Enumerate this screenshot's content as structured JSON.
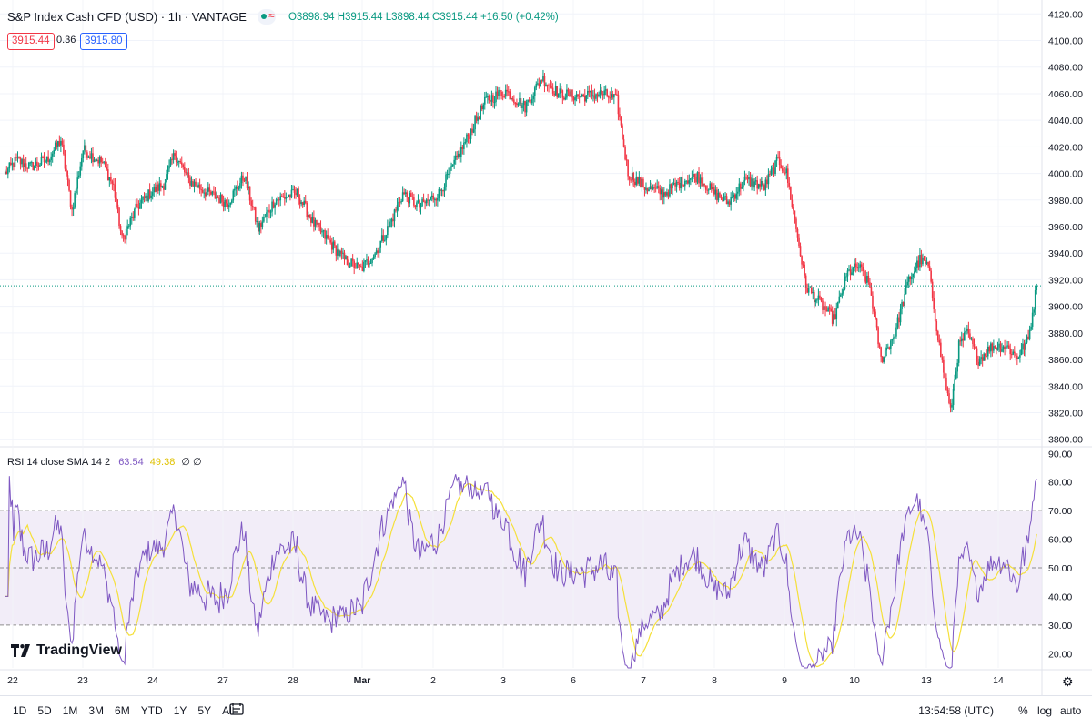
{
  "header": {
    "symbol": "S&P Index Cash CFD (USD) · 1h · VANTAGE",
    "open": "O3898.94",
    "high": "H3915.44",
    "low": "L3898.44",
    "close": "C3915.44",
    "change": "+16.50 (+0.42%)",
    "bid": "3915.44",
    "spread": "0.36",
    "ask": "3915.80",
    "wave_glyph": "≈"
  },
  "rsi_legend": {
    "label": "RSI 14 close SMA 14 2",
    "rsi_value": "63.54",
    "sma_value": "49.38",
    "extra": "∅ ∅"
  },
  "logo": {
    "text": "TradingView"
  },
  "bottom": {
    "ranges": [
      "1D",
      "5D",
      "1M",
      "3M",
      "6M",
      "YTD",
      "1Y",
      "5Y",
      "All"
    ],
    "time": "13:54:58 (UTC)",
    "percent": "%",
    "log": "log",
    "auto": "auto"
  },
  "colors": {
    "up": "#089981",
    "down": "#f23645",
    "rsi": "#7e57c2",
    "sma": "#f5e03a",
    "band": "#ede7f6"
  },
  "chart_data": [
    {
      "type": "candlestick",
      "title": "S&P Index Cash CFD (USD) · 1h · VANTAGE",
      "y_ticks": [
        3800,
        3820,
        3840,
        3860,
        3880,
        3900,
        3920,
        3940,
        3960,
        3980,
        4000,
        4020,
        4040,
        4060,
        4080,
        4100,
        4120
      ],
      "ylim": [
        3795,
        4125
      ],
      "x_ticks": [
        "22",
        "23",
        "24",
        "27",
        "28",
        "Mar",
        "2",
        "3",
        "6",
        "7",
        "8",
        "9",
        "10",
        "13",
        "14"
      ],
      "last_price": 3915.44,
      "close_waypoints": [
        [
          0,
          4000
        ],
        [
          8,
          4010
        ],
        [
          18,
          4005
        ],
        [
          30,
          4010
        ],
        [
          40,
          4025
        ],
        [
          48,
          3972
        ],
        [
          56,
          4018
        ],
        [
          70,
          4008
        ],
        [
          78,
          3990
        ],
        [
          84,
          3950
        ],
        [
          95,
          3975
        ],
        [
          104,
          3985
        ],
        [
          114,
          3992
        ],
        [
          122,
          4015
        ],
        [
          132,
          3995
        ],
        [
          146,
          3985
        ],
        [
          160,
          3978
        ],
        [
          172,
          3998
        ],
        [
          182,
          3958
        ],
        [
          194,
          3980
        ],
        [
          210,
          3985
        ],
        [
          222,
          3962
        ],
        [
          232,
          3950
        ],
        [
          244,
          3935
        ],
        [
          256,
          3928
        ],
        [
          266,
          3940
        ],
        [
          276,
          3960
        ],
        [
          286,
          3985
        ],
        [
          298,
          3975
        ],
        [
          312,
          3985
        ],
        [
          322,
          4005
        ],
        [
          334,
          4030
        ],
        [
          346,
          4055
        ],
        [
          360,
          4062
        ],
        [
          374,
          4050
        ],
        [
          386,
          4072
        ],
        [
          398,
          4060
        ],
        [
          414,
          4058
        ],
        [
          430,
          4060
        ],
        [
          440,
          4055
        ],
        [
          448,
          4000
        ],
        [
          460,
          3990
        ],
        [
          474,
          3985
        ],
        [
          488,
          3995
        ],
        [
          498,
          3998
        ],
        [
          510,
          3985
        ],
        [
          520,
          3978
        ],
        [
          532,
          3995
        ],
        [
          546,
          3990
        ],
        [
          556,
          4010
        ],
        [
          562,
          4000
        ],
        [
          568,
          3965
        ],
        [
          576,
          3915
        ],
        [
          588,
          3900
        ],
        [
          596,
          3890
        ],
        [
          606,
          3925
        ],
        [
          614,
          3930
        ],
        [
          622,
          3915
        ],
        [
          630,
          3860
        ],
        [
          640,
          3880
        ],
        [
          650,
          3920
        ],
        [
          658,
          3935
        ],
        [
          664,
          3930
        ],
        [
          672,
          3870
        ],
        [
          680,
          3820
        ],
        [
          686,
          3870
        ],
        [
          692,
          3880
        ],
        [
          700,
          3860
        ],
        [
          710,
          3870
        ],
        [
          720,
          3870
        ],
        [
          728,
          3862
        ],
        [
          736,
          3875
        ],
        [
          742,
          3915
        ]
      ]
    },
    {
      "type": "line",
      "title": "RSI 14 close SMA 14 2",
      "series": [
        {
          "name": "RSI",
          "last": 63.54
        },
        {
          "name": "SMA",
          "last": 49.38
        }
      ],
      "y_ticks": [
        20,
        30,
        40,
        50,
        60,
        70,
        80,
        90
      ],
      "ylim": [
        15,
        92
      ],
      "bands": [
        30,
        50,
        70
      ]
    }
  ]
}
